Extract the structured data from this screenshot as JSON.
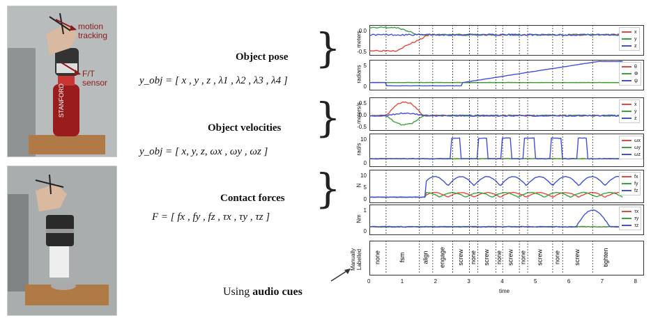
{
  "photos": {
    "top_annotations": {
      "motion": "motion\ntracking",
      "sensor": "F/T\nsensor"
    },
    "bottle_text": "STANFORD"
  },
  "labels": {
    "pose": "Object pose",
    "velocities": "Object velocities",
    "forces": "Contact forces",
    "audio": "Using ",
    "audio_bold": "audio cues"
  },
  "equations": {
    "pose": "y_obj = [ x , y , z , λ1 , λ2 , λ3 , λ4 ]",
    "velocities": "y_obj = [ x, y, z, ωx , ωy , ωz ]",
    "forces": "F = [ fx , fy , fz , τx , τy , τz ]"
  },
  "colors": {
    "red": "#e8473c",
    "green": "#3aa33a",
    "blue": "#3f4fe0"
  },
  "chart_data": [
    {
      "type": "line",
      "ylabel": "meters",
      "yticks": [
        "0.0",
        "-0.5"
      ],
      "series": [
        {
          "name": "x"
        },
        {
          "name": "y"
        },
        {
          "name": "z"
        }
      ]
    },
    {
      "type": "line",
      "ylabel": "radians",
      "yticks": [
        "5",
        "0"
      ],
      "series": [
        {
          "name": "θ"
        },
        {
          "name": "Φ"
        },
        {
          "name": "ψ"
        }
      ]
    },
    {
      "type": "line",
      "ylabel": "meters/s",
      "yticks": [
        "0.5",
        "0.0",
        "-0.5"
      ],
      "series": [
        {
          "name": "ẋ"
        },
        {
          "name": "ẏ"
        },
        {
          "name": "ż"
        }
      ]
    },
    {
      "type": "line",
      "ylabel": "rad/s",
      "yticks": [
        "10",
        "0"
      ],
      "series": [
        {
          "name": "ωx"
        },
        {
          "name": "ωy"
        },
        {
          "name": "ωz"
        }
      ]
    },
    {
      "type": "line",
      "ylabel": "N",
      "yticks": [
        "10",
        "5",
        "0"
      ],
      "series": [
        {
          "name": "fx"
        },
        {
          "name": "fy"
        },
        {
          "name": "fz"
        }
      ]
    },
    {
      "type": "line",
      "ylabel": "Nm",
      "yticks": [
        "1",
        "0"
      ],
      "series": [
        {
          "name": "τx"
        },
        {
          "name": "τy"
        },
        {
          "name": "τz"
        }
      ]
    },
    {
      "type": "table",
      "ylabel": "Manually\nLabelled",
      "segments": [
        {
          "label": "none",
          "start": 0.0,
          "end": 0.5
        },
        {
          "label": "fsm",
          "start": 0.5,
          "end": 1.5
        },
        {
          "label": "align",
          "start": 1.5,
          "end": 1.9
        },
        {
          "label": "engage",
          "start": 1.9,
          "end": 2.5
        },
        {
          "label": "screw",
          "start": 2.5,
          "end": 3.0
        },
        {
          "label": "none",
          "start": 3.0,
          "end": 3.25
        },
        {
          "label": "screw",
          "start": 3.25,
          "end": 3.8
        },
        {
          "label": "none",
          "start": 3.8,
          "end": 4.0
        },
        {
          "label": "screw",
          "start": 4.0,
          "end": 4.5
        },
        {
          "label": "none",
          "start": 4.5,
          "end": 4.75
        },
        {
          "label": "screw",
          "start": 4.75,
          "end": 5.5
        },
        {
          "label": "none",
          "start": 5.5,
          "end": 5.8
        },
        {
          "label": "screw",
          "start": 5.8,
          "end": 6.7
        },
        {
          "label": "tighten",
          "start": 6.7,
          "end": 7.5
        }
      ],
      "xticks": [
        "0",
        "1",
        "2",
        "3",
        "4",
        "5",
        "6",
        "7",
        "8"
      ],
      "xlabel": "time"
    }
  ]
}
